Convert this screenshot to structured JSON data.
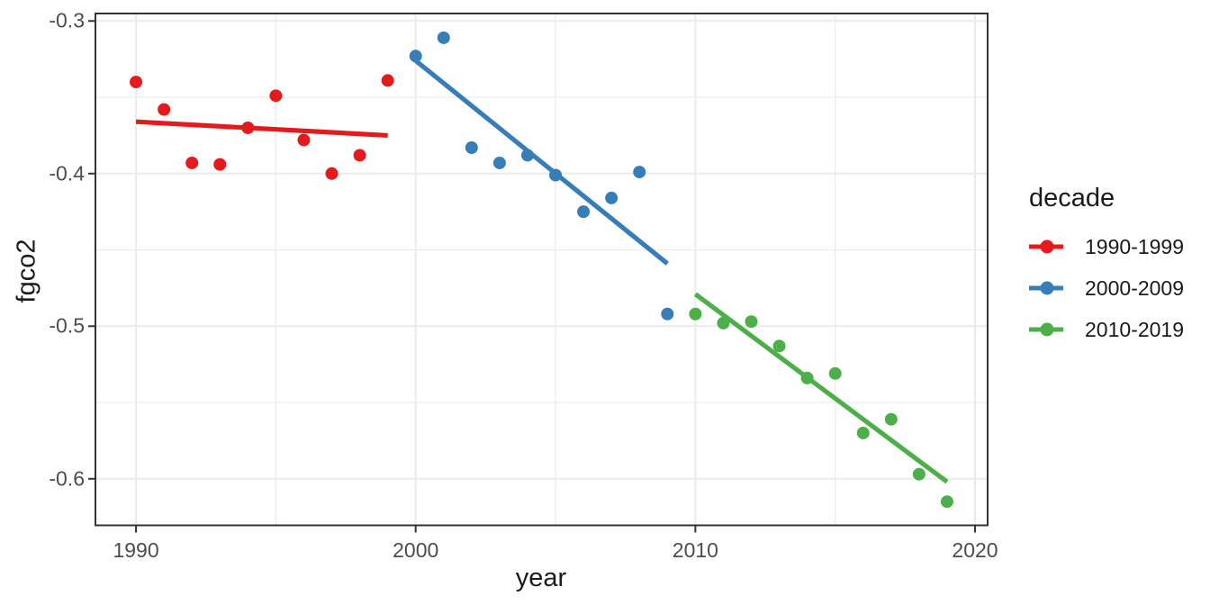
{
  "figure": {
    "x_axis_title": "year",
    "y_axis_title": "fgco2",
    "legend": {
      "title": "decade",
      "entries": [
        {
          "label": "1990-1999",
          "color": "#E41A1C"
        },
        {
          "label": "2000-2009",
          "color": "#377EB8"
        },
        {
          "label": "2010-2019",
          "color": "#4DAF4A"
        }
      ]
    }
  },
  "style": {
    "background": "#ffffff",
    "panel_border_color": "#333333",
    "grid_color": "#ebebeb",
    "tick_mark_color": "#333333",
    "tick_label_color": "#4d4d4d",
    "title_color": "#1a1a1a"
  },
  "chart_data": {
    "type": "scatter",
    "title": "",
    "xlabel": "year",
    "ylabel": "fgco2",
    "grid": true,
    "legend_position": "right",
    "xlim": [
      1988.55,
      2020.45
    ],
    "ylim": [
      -0.6305,
      -0.2951
    ],
    "x_major_ticks": [
      1990,
      2000,
      2010,
      2020
    ],
    "x_minor_ticks": [
      1995,
      2005,
      2015
    ],
    "y_major_ticks": [
      -0.3,
      -0.4,
      -0.5,
      -0.6
    ],
    "y_minor_ticks": [
      -0.35,
      -0.45,
      -0.55
    ],
    "x_tick_labels": [
      "1990",
      "2000",
      "2010",
      "2020"
    ],
    "y_tick_labels": [
      "-0.3",
      "-0.4",
      "-0.5",
      "-0.6"
    ],
    "series": [
      {
        "name": "1990-1999",
        "color": "#E41A1C",
        "x": [
          1990,
          1991,
          1992,
          1993,
          1994,
          1995,
          1996,
          1997,
          1998,
          1999
        ],
        "y": [
          -0.34,
          -0.358,
          -0.393,
          -0.394,
          -0.37,
          -0.349,
          -0.378,
          -0.4,
          -0.388,
          -0.339
        ],
        "trend": {
          "x1": 1990,
          "y1": -0.366,
          "x2": 1999,
          "y2": -0.375
        }
      },
      {
        "name": "2000-2009",
        "color": "#377EB8",
        "x": [
          2000,
          2001,
          2002,
          2003,
          2004,
          2005,
          2006,
          2007,
          2008,
          2009
        ],
        "y": [
          -0.323,
          -0.311,
          -0.383,
          -0.393,
          -0.388,
          -0.401,
          -0.425,
          -0.416,
          -0.399,
          -0.492
        ],
        "trend": {
          "x1": 2000,
          "y1": -0.326,
          "x2": 2009,
          "y2": -0.459
        }
      },
      {
        "name": "2010-2019",
        "color": "#4DAF4A",
        "x": [
          2010,
          2011,
          2012,
          2013,
          2014,
          2015,
          2016,
          2017,
          2018,
          2019
        ],
        "y": [
          -0.492,
          -0.498,
          -0.497,
          -0.513,
          -0.534,
          -0.531,
          -0.57,
          -0.561,
          -0.597,
          -0.615
        ],
        "trend": {
          "x1": 2010,
          "y1": -0.479,
          "x2": 2019,
          "y2": -0.602
        }
      }
    ]
  }
}
